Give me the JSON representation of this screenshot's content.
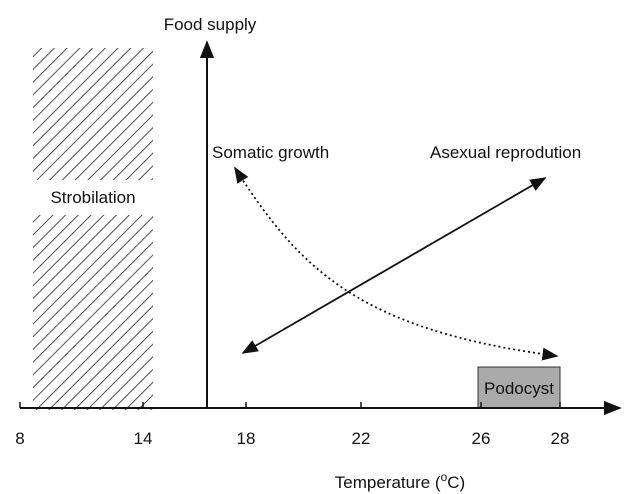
{
  "y_axis_label": "Food supply",
  "x_axis_label": {
    "prefix": "Temperature (",
    "superscript": "o",
    "suffix": "C)"
  },
  "x_ticks": [
    "8",
    "14",
    "18",
    "22",
    "26",
    "28"
  ],
  "regions": {
    "strobilation": "Strobilation",
    "podocyst": "Podocyst"
  },
  "curves": {
    "somatic_growth": "Somatic growth",
    "asexual_reproduction": "Asexual reprodution"
  }
}
